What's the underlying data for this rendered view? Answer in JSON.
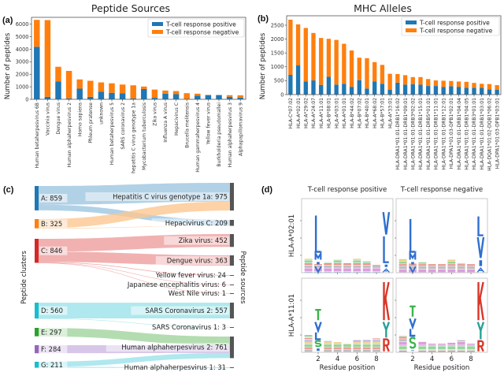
{
  "panel_labels": {
    "a": "(a)",
    "b": "(b)",
    "c": "(c)",
    "d": "(d)"
  },
  "colors": {
    "positive": "#1f77b4",
    "negative": "#ff7f0e"
  },
  "chart_data": [
    {
      "id": "a",
      "type": "bar",
      "stacked": true,
      "title": "Peptide Sources",
      "ylabel": "Number of peptides",
      "xlabel": "",
      "ylim": [
        0,
        6550
      ],
      "yticks": [
        0,
        1000,
        2000,
        3000,
        4000,
        5000,
        6000
      ],
      "legend": {
        "placement": "top-right",
        "entries": [
          "T-cell response positive",
          "T-cell response negative"
        ]
      },
      "categories": [
        "Human betaherpesvirus 6B",
        "Vaccinia virus",
        "Dengue virus",
        "Human alphaherpesvirus 2",
        "Homo sapiens",
        "Phleum pratense",
        "unknown",
        "Human betaherpesvirus 5",
        "SARS coronavirus 2",
        "hepatitis C virus genotype 1a",
        "Mycobacterium tuberculosis",
        "Zika virus",
        "Influenza A virus",
        "Hepacivirus C",
        "Brucella melitensis",
        "Human gammaherpesvirus 4",
        "Yellow fever virus",
        "Burkholderia pseudomallei",
        "Human alphaherpesvirus 3",
        "Alphapapillomavirus 9"
      ],
      "series": [
        {
          "name": "T-cell response positive",
          "values": [
            4200,
            200,
            1420,
            80,
            850,
            200,
            600,
            520,
            470,
            70,
            820,
            120,
            450,
            410,
            30,
            300,
            340,
            340,
            200,
            130
          ]
        },
        {
          "name": "T-cell response negative",
          "values": [
            2150,
            6130,
            1180,
            2190,
            740,
            1280,
            750,
            760,
            710,
            1050,
            200,
            660,
            250,
            250,
            460,
            150,
            10,
            0,
            130,
            190
          ]
        }
      ]
    },
    {
      "id": "b",
      "type": "bar",
      "stacked": true,
      "title": "MHC Alleles",
      "ylabel": "Number of peptides",
      "xlabel": "",
      "ylim": [
        0,
        2840
      ],
      "yticks": [
        0,
        500,
        1000,
        1500,
        2000,
        2500
      ],
      "legend": {
        "placement": "top-right",
        "entries": [
          "T-cell response positive",
          "T-cell response negative"
        ]
      },
      "categories": [
        "HLA-C*07:02",
        "HLA-A*02:01",
        "HLA-A*29:02",
        "HLA-A*24:07",
        "HLA-A*11:01",
        "HLA-B*08:01",
        "HLA-A*03:01",
        "HLA-A*01:01",
        "HLA-B*44:02",
        "HLA-B*07:02",
        "HLA-B*40:01",
        "HLA-A*68:02",
        "HLA-B*57:01",
        "HLA-A*33:01",
        "HLA-DRA1*01:01-DRB1*16:02",
        "HLA-DRA1*01:01-DRB1*09:01",
        "HLA-DRA1*01:01-DRB3*02:02",
        "HLA-DRA1*01:01-DRB1*15:01",
        "HLA-DRA1*01:01-DRB5*01:01",
        "HLA-DRA1*01:01-DRB1*11:01",
        "HLA-DRA1*01:01-DRB1*12:01",
        "HLA-DPA1*01:03-DPB1*02:01",
        "HLA-DRA1*01:01-DRB1*04:04",
        "HLA-DRA1*01:01-DRB1*04:05",
        "HLA-DRA1*01:01-DRB3*01:01",
        "HLA-DRA1*01:01-DRB1*03:01",
        "HLA-DQA1*01:02-DQB1*06:02",
        "HLA-DPA1*01:03-DPB1*03:01"
      ],
      "series": [
        {
          "name": "T-cell response positive",
          "values": [
            710,
            1050,
            470,
            510,
            350,
            640,
            360,
            390,
            280,
            520,
            220,
            470,
            390,
            170,
            430,
            360,
            370,
            360,
            310,
            310,
            270,
            300,
            280,
            240,
            240,
            240,
            190,
            180
          ]
        },
        {
          "name": "T-cell response negative",
          "values": [
            1990,
            1480,
            1930,
            1710,
            1690,
            1370,
            1610,
            1440,
            1310,
            810,
            1090,
            700,
            680,
            580,
            310,
            340,
            260,
            270,
            250,
            200,
            230,
            190,
            190,
            220,
            180,
            150,
            190,
            160
          ]
        }
      ]
    },
    {
      "id": "c",
      "type": "sankey",
      "left_axis_label": "Peptide clusters",
      "right_axis_label": "Peptide sources",
      "left_nodes": [
        {
          "id": "A",
          "label": "A: 859",
          "value": 859,
          "color": "#1f77b4",
          "flow_color": "#9ec5e0"
        },
        {
          "id": "B",
          "label": "B: 325",
          "value": 325,
          "color": "#ff7f0e",
          "flow_color": "#fdc791"
        },
        {
          "id": "C",
          "label": "C: 846",
          "value": 846,
          "color": "#d62728",
          "flow_color": "#ee9d9d"
        },
        {
          "id": "D",
          "label": "D: 560",
          "value": 560,
          "color": "#17becf",
          "flow_color": "#9be2ea"
        },
        {
          "id": "E",
          "label": "E: 297",
          "value": 297,
          "color": "#2ca02c",
          "flow_color": "#a0d49c"
        },
        {
          "id": "F",
          "label": "F: 284",
          "value": 284,
          "color": "#9467bd",
          "flow_color": "#cdb8e2"
        },
        {
          "id": "G",
          "label": "G: 211",
          "value": 211,
          "color": "#17becf",
          "flow_color": "#9be2ea"
        }
      ],
      "right_nodes": [
        {
          "id": "HCV1a",
          "label": "Hepatitis C virus genotype 1a: 975",
          "value": 975
        },
        {
          "id": "HepC",
          "label": "Hepacivirus C: 209",
          "value": 209
        },
        {
          "id": "Zika",
          "label": "Zika virus: 452",
          "value": 452
        },
        {
          "id": "Dengue",
          "label": "Dengue virus: 363",
          "value": 363
        },
        {
          "id": "YF",
          "label": "Yellow fever virus: 24",
          "value": 24
        },
        {
          "id": "JEV",
          "label": "Japanese encephalitis virus: 6",
          "value": 6
        },
        {
          "id": "WNV",
          "label": "West Nile virus: 1",
          "value": 1
        },
        {
          "id": "SARS2",
          "label": "SARS Coronavirus 2: 557",
          "value": 557
        },
        {
          "id": "SARS1",
          "label": "SARS Coronavirus 1: 3",
          "value": 3
        },
        {
          "id": "HAHV2",
          "label": "Human alphaherpesvirus 2: 761",
          "value": 761
        },
        {
          "id": "HAHV1",
          "label": "Human alphaherpesvirus 1: 31",
          "value": 31
        }
      ],
      "links": [
        {
          "source": "A",
          "target": "HCV1a",
          "value": 659
        },
        {
          "source": "A",
          "target": "HepC",
          "value": 200
        },
        {
          "source": "B",
          "target": "HCV1a",
          "value": 316
        },
        {
          "source": "B",
          "target": "HepC",
          "value": 9
        },
        {
          "source": "C",
          "target": "Zika",
          "value": 452
        },
        {
          "source": "C",
          "target": "Dengue",
          "value": 363
        },
        {
          "source": "C",
          "target": "YF",
          "value": 24
        },
        {
          "source": "C",
          "target": "JEV",
          "value": 6
        },
        {
          "source": "C",
          "target": "WNV",
          "value": 1
        },
        {
          "source": "D",
          "target": "SARS2",
          "value": 557
        },
        {
          "source": "D",
          "target": "SARS1",
          "value": 3
        },
        {
          "source": "E",
          "target": "HAHV2",
          "value": 297
        },
        {
          "source": "F",
          "target": "HAHV2",
          "value": 284
        },
        {
          "source": "G",
          "target": "HAHV2",
          "value": 180
        },
        {
          "source": "G",
          "target": "HAHV1",
          "value": 31
        }
      ]
    },
    {
      "id": "d",
      "type": "sequence-logo",
      "column_titles": [
        "T-cell response positive",
        "T-cell response negative"
      ],
      "row_labels": [
        "HLA-A*02:01",
        "HLA-A*11:01"
      ],
      "xlabel": "Residue position",
      "xticks": [
        2,
        4,
        6,
        8
      ],
      "positions": 9,
      "letter_colors": {
        "L": "#2f6fd0",
        "V": "#2f6fd0",
        "M": "#2f6fd0",
        "I": "#2f6fd0",
        "A": "#2f6fd0",
        "T": "#3cb44b",
        "S": "#3cb44b",
        "K": "#d9372a",
        "R": "#d9372a",
        "Y": "#2aa198"
      },
      "logos": [
        {
          "row": 0,
          "col": 0,
          "stacks": [
            {
              "pos": 2,
              "letters": [
                [
                  "V",
                  0.4
                ],
                [
                  "I",
                  0.3
                ],
                [
                  "M",
                  0.45
                ],
                [
                  "L",
                  2.2
                ]
              ]
            },
            {
              "pos": 9,
              "letters": [
                [
                  "A",
                  0.25
                ],
                [
                  "I",
                  0.3
                ],
                [
                  "L",
                  1.6
                ],
                [
                  "V",
                  1.4
                ]
              ]
            }
          ],
          "background_bits": [
            0.8,
            0.5,
            0.6,
            0.75,
            0.55,
            0.8,
            0.65,
            0.45,
            0
          ]
        },
        {
          "row": 0,
          "col": 1,
          "stacks": [
            {
              "pos": 2,
              "letters": [
                [
                  "V",
                  0.4
                ],
                [
                  "I",
                  0.3
                ],
                [
                  "M",
                  0.45
                ],
                [
                  "L",
                  2.0
                ]
              ]
            },
            {
              "pos": 9,
              "letters": [
                [
                  "A",
                  0.3
                ],
                [
                  "I",
                  0.5
                ],
                [
                  "V",
                  1.3
                ],
                [
                  "L",
                  1.2
                ]
              ]
            }
          ],
          "background_bits": [
            0.8,
            0.55,
            0.6,
            0.5,
            0.5,
            0.75,
            0.55,
            0.5,
            0
          ]
        },
        {
          "row": 1,
          "col": 0,
          "stacks": [
            {
              "pos": 2,
              "letters": [
                [
                  "I",
                  0.3
                ],
                [
                  "S",
                  0.4
                ],
                [
                  "L",
                  0.5
                ],
                [
                  "V",
                  0.6
                ],
                [
                  "T",
                  0.7
                ]
              ]
            },
            {
              "pos": 9,
              "letters": [
                [
                  "R",
                  0.8
                ],
                [
                  "Y",
                  1.0
                ],
                [
                  "K",
                  2.3
                ]
              ]
            }
          ],
          "background_bits": [
            1.0,
            0,
            0.65,
            0.6,
            0.5,
            0.7,
            0.75,
            0.8,
            0
          ]
        },
        {
          "row": 1,
          "col": 1,
          "stacks": [
            {
              "pos": 2,
              "letters": [
                [
                  "I",
                  0.2
                ],
                [
                  "S",
                  0.7
                ],
                [
                  "L",
                  0.5
                ],
                [
                  "V",
                  0.6
                ],
                [
                  "T",
                  0.7
                ]
              ]
            },
            {
              "pos": 9,
              "letters": [
                [
                  "R",
                  0.7
                ],
                [
                  "Y",
                  1.1
                ],
                [
                  "K",
                  2.3
                ]
              ]
            }
          ],
          "background_bits": [
            0.95,
            0,
            0.6,
            0.5,
            0.5,
            0.55,
            0.7,
            0.5,
            0
          ]
        }
      ]
    }
  ]
}
